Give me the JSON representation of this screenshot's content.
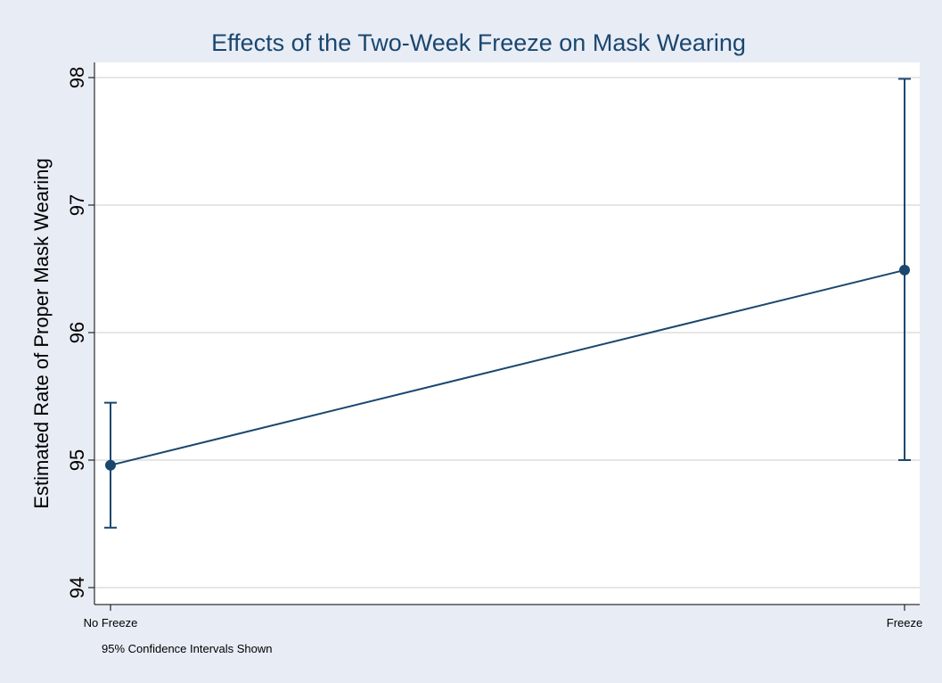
{
  "chart_data": {
    "type": "line",
    "title": "Effects of the Two-Week Freeze on Mask Wearing",
    "xlabel": "",
    "ylabel": "Estimated Rate of Proper Mask Wearing",
    "note": "95% Confidence Intervals Shown",
    "categories": [
      "No Freeze",
      "Freeze"
    ],
    "series": [
      {
        "values": [
          94.96,
          96.49
        ],
        "ci_lower": [
          94.47,
          95.0
        ],
        "ci_upper": [
          95.45,
          97.99
        ]
      }
    ],
    "ylim": [
      94,
      98
    ],
    "yticks": [
      "94",
      "95",
      "96",
      "97",
      "98"
    ],
    "grid": true,
    "colors": {
      "outer_background": "#e8ecf5",
      "plot_background": "#ffffff",
      "series": "#1a476f",
      "title": "#1a476f",
      "grid": "#e6e6e6"
    }
  }
}
